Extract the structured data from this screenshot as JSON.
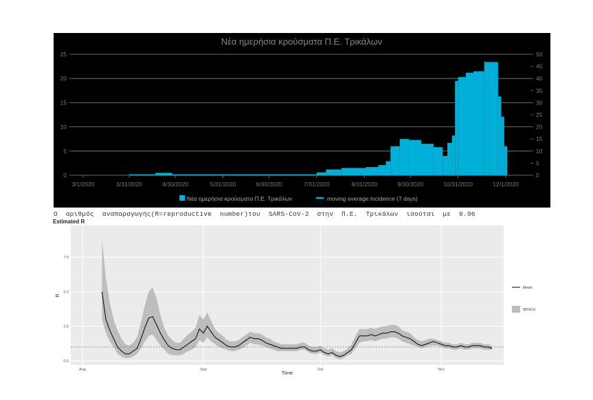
{
  "chart_data": [
    {
      "type": "bar",
      "title": "Νέα ημερήσια κρούσματα Π.Ε. Τρικάλων",
      "xlabel": "",
      "ylabel": "",
      "x_tick_labels": [
        "3/1/2020",
        "3/31/2020",
        "4/30/2020",
        "5/31/2020",
        "6/30/2020",
        "7/31/2020",
        "8/31/2020",
        "9/30/2020",
        "10/31/2020",
        "12/1/2020"
      ],
      "x_tick_positions_days": [
        0,
        30,
        60,
        91,
        121,
        152,
        183,
        213,
        244,
        275
      ],
      "ylim_left": [
        0,
        25
      ],
      "yticks_left": [
        0,
        5,
        10,
        15,
        20,
        25
      ],
      "ylim_right": [
        0,
        50
      ],
      "yticks_right": [
        0,
        5,
        10,
        15,
        20,
        25,
        30,
        35,
        40,
        45,
        50
      ],
      "grid": true,
      "legend_position": "bottom",
      "background": "#000000",
      "series": [
        {
          "name": "Νέα ημερήσια κρούσματα Π.Ε. Τρικάλων",
          "color": "#00b0d8",
          "kind": "step-bars",
          "x_day": [
            30,
            47,
            58,
            62,
            92,
            125,
            152,
            158,
            168,
            184,
            192,
            197,
            200,
            206,
            212,
            220,
            228,
            234,
            237,
            240,
            242,
            244,
            249,
            254,
            261,
            262,
            264,
            270,
            272,
            274
          ],
          "values": [
            0.2,
            0.5,
            0.2,
            0.2,
            0.2,
            0.2,
            0.6,
            1.2,
            1.5,
            1.7,
            2.1,
            2.9,
            6.0,
            7.5,
            7.3,
            6.5,
            5.8,
            4.0,
            6.7,
            8.2,
            19.5,
            20.3,
            21.2,
            21.5,
            23.5,
            23.4,
            23.4,
            16.3,
            12.1,
            6.0
          ],
          "x_end_day": 276
        },
        {
          "name": "moving average incidence (7 days)",
          "color": "#00b0d8",
          "kind": "line"
        }
      ]
    },
    {
      "type": "line",
      "title": "Estimated R",
      "xlabel": "Time",
      "ylabel": "R",
      "x_tick_labels": [
        "Aug",
        "Sep",
        "Oct",
        "Nov"
      ],
      "x_tick_positions_days": [
        0,
        31,
        61,
        92
      ],
      "xlim_days": [
        -3,
        108
      ],
      "ylim": [
        -0.3,
        9.8
      ],
      "yticks": [
        0.0,
        2.5,
        5.0,
        7.5
      ],
      "ytick_labels": [
        "0.0",
        "2.5",
        "5.0",
        "7.5"
      ],
      "reference_line": 1,
      "grid": true,
      "legend_position": "right",
      "background": "#ebebeb",
      "legend": [
        "Mean",
        "95%CrI"
      ],
      "series": [
        {
          "name": "Mean",
          "color": "#000000",
          "x_day": [
            5,
            6,
            7,
            8,
            9,
            10,
            11,
            12,
            13,
            14,
            15,
            16,
            17,
            18,
            19,
            20,
            21,
            22,
            23,
            24,
            25,
            26,
            27,
            28,
            29,
            30,
            31,
            32,
            33,
            34,
            35,
            36,
            37,
            38,
            39,
            40,
            41,
            42,
            43,
            44,
            45,
            46,
            47,
            48,
            49,
            50,
            51,
            52,
            53,
            54,
            55,
            56,
            57,
            58,
            59,
            60,
            61,
            62,
            63,
            64,
            65,
            66,
            67,
            68,
            69,
            70,
            71,
            72,
            73,
            74,
            75,
            76,
            77,
            78,
            79,
            80,
            81,
            82,
            83,
            84,
            85,
            86,
            87,
            88,
            89,
            90,
            91,
            92,
            93,
            94,
            95,
            96,
            97,
            98,
            99,
            100,
            101,
            102,
            103,
            104,
            105
          ],
          "values": [
            5.0,
            3.0,
            2.2,
            1.6,
            1.0,
            0.7,
            0.5,
            0.5,
            0.7,
            0.9,
            1.6,
            2.4,
            3.1,
            3.2,
            2.6,
            2.0,
            1.5,
            1.1,
            0.9,
            0.8,
            0.8,
            1.0,
            1.2,
            1.4,
            1.6,
            2.3,
            2.0,
            2.5,
            2.1,
            1.7,
            1.5,
            1.3,
            1.1,
            1.0,
            1.0,
            1.1,
            1.3,
            1.5,
            1.7,
            1.6,
            1.6,
            1.5,
            1.3,
            1.2,
            1.1,
            1.0,
            0.9,
            0.9,
            0.9,
            0.9,
            0.9,
            1.0,
            1.0,
            0.8,
            0.7,
            0.7,
            0.8,
            0.6,
            0.5,
            0.6,
            0.4,
            0.3,
            0.4,
            0.6,
            0.8,
            1.3,
            1.8,
            1.8,
            1.8,
            1.9,
            1.8,
            1.9,
            2.0,
            2.0,
            2.1,
            2.1,
            2.0,
            1.8,
            1.7,
            1.6,
            1.4,
            1.2,
            1.1,
            1.2,
            1.3,
            1.4,
            1.3,
            1.2,
            1.1,
            1.1,
            1.0,
            1.0,
            1.1,
            1.0,
            1.0,
            1.1,
            1.1,
            1.1,
            1.0,
            1.0,
            0.9
          ]
        },
        {
          "name": "95%CrI",
          "color": "#bdbdbd",
          "upper": [
            8.8,
            6.0,
            4.2,
            3.0,
            2.2,
            1.6,
            1.2,
            1.1,
            1.3,
            1.7,
            2.8,
            4.0,
            5.0,
            5.3,
            4.5,
            3.3,
            2.4,
            1.8,
            1.5,
            1.3,
            1.3,
            1.6,
            1.9,
            2.1,
            2.4,
            3.3,
            3.0,
            3.5,
            2.9,
            2.3,
            2.0,
            1.8,
            1.5,
            1.4,
            1.4,
            1.5,
            1.7,
            1.9,
            2.1,
            2.0,
            2.0,
            1.9,
            1.7,
            1.6,
            1.4,
            1.3,
            1.2,
            1.2,
            1.2,
            1.2,
            1.2,
            1.3,
            1.3,
            1.1,
            1.0,
            1.0,
            1.1,
            0.9,
            0.8,
            0.9,
            0.7,
            0.6,
            0.7,
            0.9,
            1.2,
            1.8,
            2.3,
            2.3,
            2.3,
            2.4,
            2.3,
            2.4,
            2.5,
            2.5,
            2.6,
            2.6,
            2.5,
            2.2,
            2.1,
            2.0,
            1.7,
            1.5,
            1.4,
            1.5,
            1.6,
            1.6,
            1.5,
            1.4,
            1.3,
            1.3,
            1.2,
            1.2,
            1.3,
            1.2,
            1.2,
            1.3,
            1.3,
            1.3,
            1.2,
            1.2,
            1.1
          ],
          "lower": [
            3.0,
            2.0,
            1.4,
            1.0,
            0.5,
            0.3,
            0.2,
            0.2,
            0.3,
            0.5,
            0.9,
            1.4,
            1.8,
            1.9,
            1.5,
            1.1,
            0.8,
            0.5,
            0.4,
            0.4,
            0.4,
            0.5,
            0.7,
            0.8,
            1.0,
            1.5,
            1.3,
            1.7,
            1.4,
            1.2,
            1.0,
            0.9,
            0.8,
            0.7,
            0.7,
            0.8,
            0.9,
            1.1,
            1.3,
            1.2,
            1.2,
            1.1,
            1.0,
            0.9,
            0.8,
            0.7,
            0.7,
            0.7,
            0.7,
            0.7,
            0.7,
            0.8,
            0.8,
            0.6,
            0.5,
            0.5,
            0.6,
            0.4,
            0.3,
            0.4,
            0.2,
            0.1,
            0.2,
            0.4,
            0.5,
            0.9,
            1.3,
            1.4,
            1.4,
            1.5,
            1.4,
            1.5,
            1.6,
            1.6,
            1.7,
            1.7,
            1.6,
            1.4,
            1.3,
            1.2,
            1.1,
            1.0,
            0.9,
            1.0,
            1.1,
            1.1,
            1.1,
            1.0,
            0.9,
            0.9,
            0.8,
            0.8,
            0.9,
            0.8,
            0.8,
            0.9,
            0.9,
            0.9,
            0.8,
            0.8,
            0.8
          ]
        }
      ]
    }
  ],
  "caption": "Ο  αριθμός  αναπαραγωγής(R=reproductive  number)του  SARS-CoV-2  στην  Π.Ε.  Τρικάλων  ισούται  με  0.96"
}
